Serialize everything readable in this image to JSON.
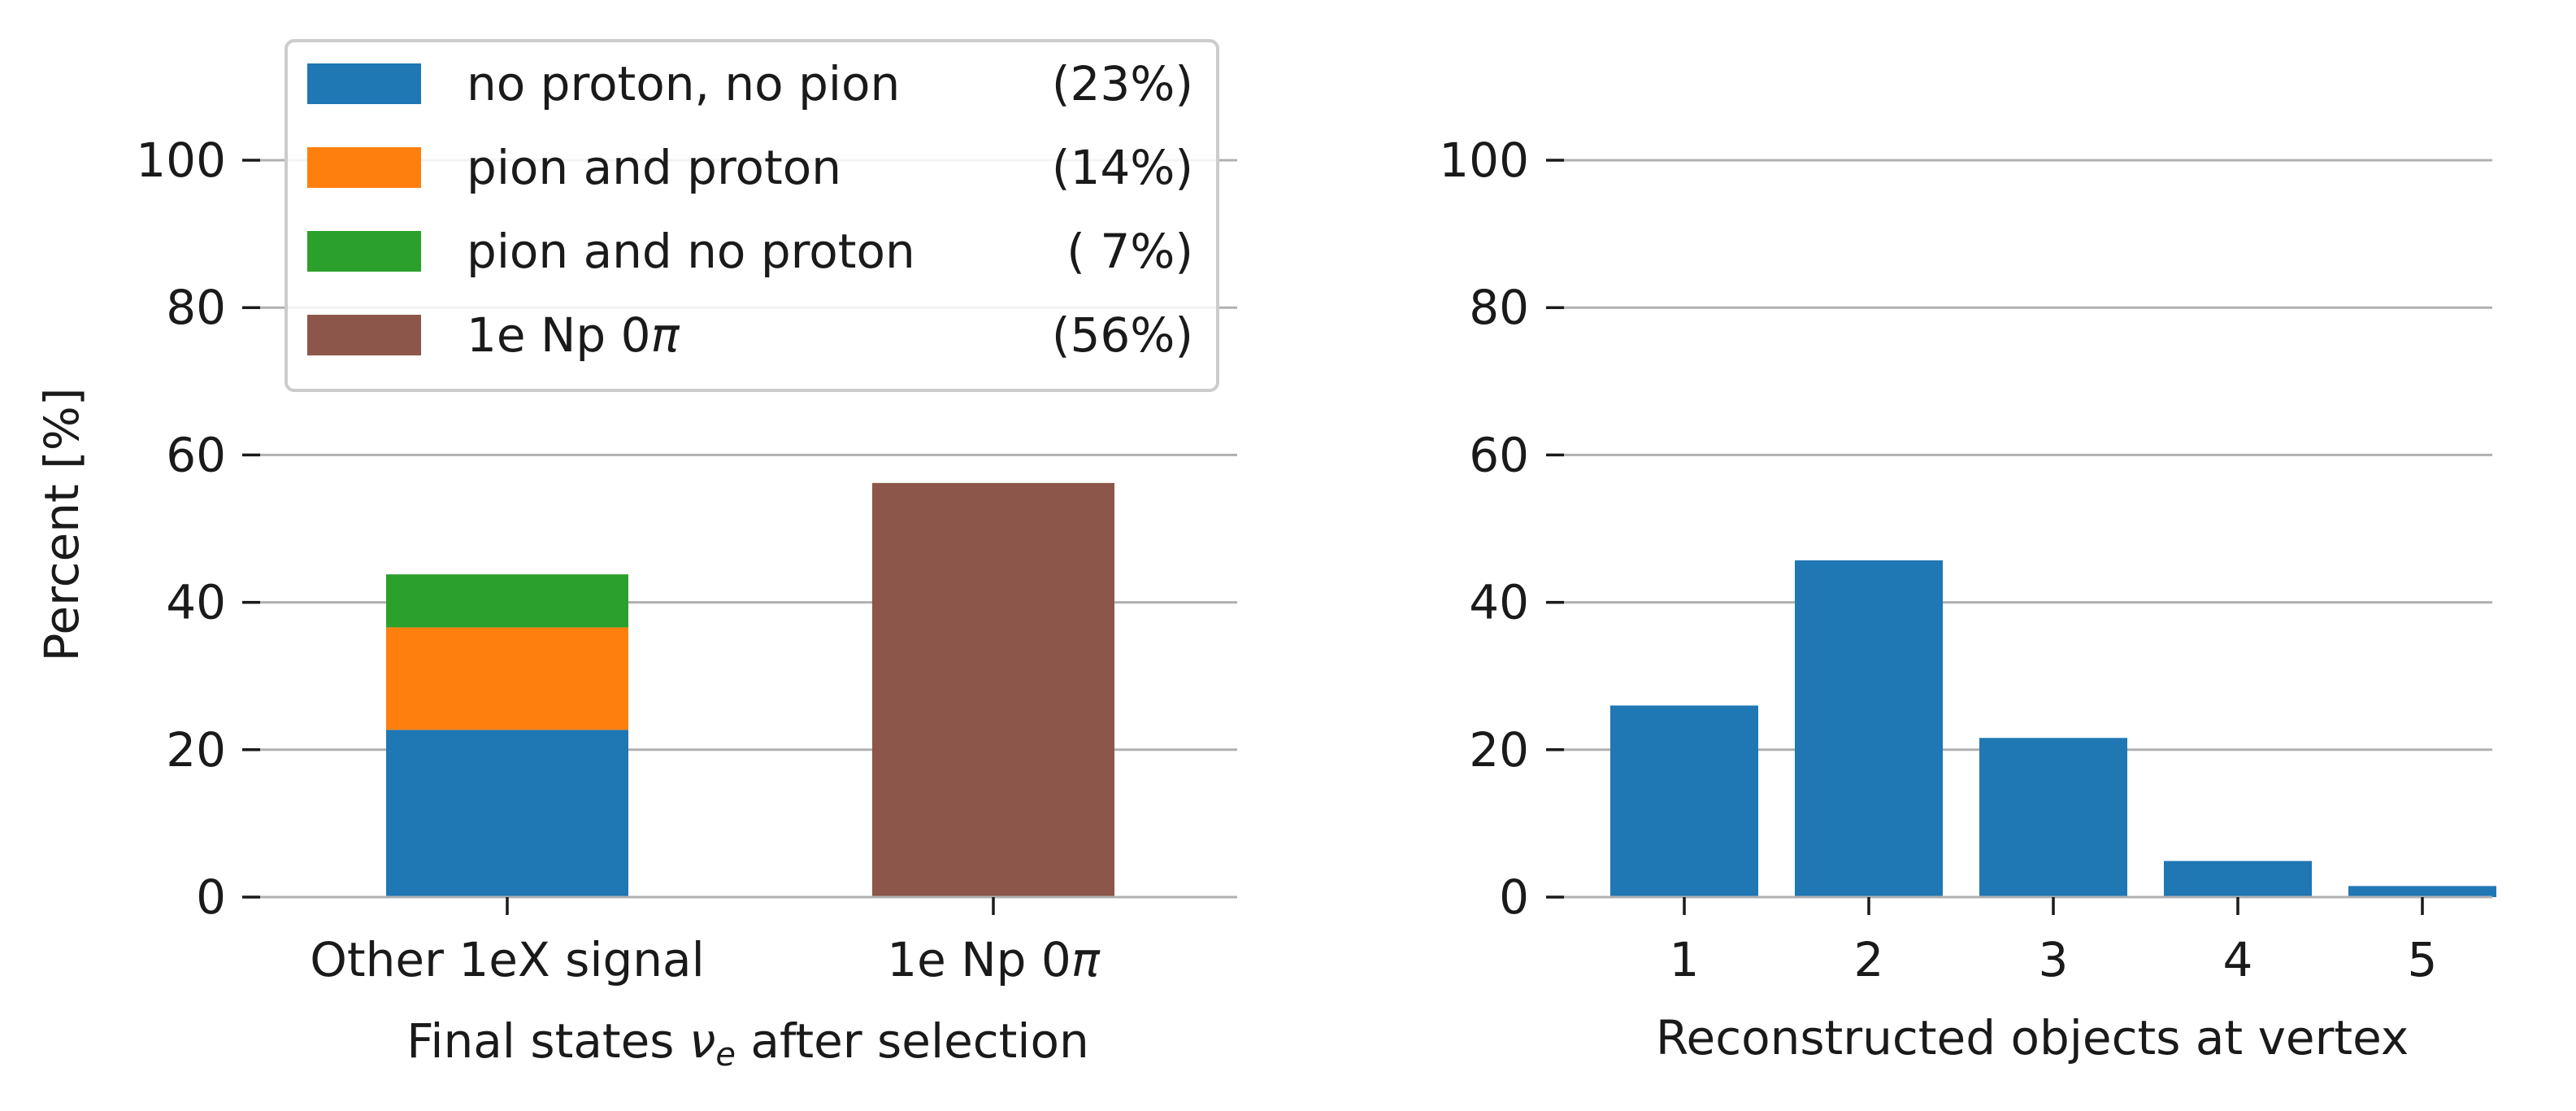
{
  "figure": {
    "colors": {
      "blue": "#1f77b4",
      "orange": "#ff7f0e",
      "green": "#2ca02c",
      "brown": "#8c564b",
      "grid": "#b0b0b0"
    }
  },
  "chart_data": [
    {
      "type": "bar",
      "stacked": true,
      "title": "",
      "xlabel": "Final states νe after selection",
      "ylabel": "Percent [%]",
      "ylim": [
        0,
        115
      ],
      "yticks": [
        "0",
        "20",
        "40",
        "60",
        "80",
        "100"
      ],
      "grid": "horizontal",
      "legend_position": "top-left",
      "categories": [
        "Other 1eX signal",
        "1e Np 0π"
      ],
      "series": [
        {
          "name": "no proton, no pion",
          "legend_pct": "(23%)",
          "color": "#1f77b4",
          "values": [
            22.7,
            0
          ]
        },
        {
          "name": "pion and proton",
          "legend_pct": "(14%)",
          "color": "#ff7f0e",
          "values": [
            13.9,
            0
          ]
        },
        {
          "name": "pion and no proton",
          "legend_pct": "( 7%)",
          "color": "#2ca02c",
          "values": [
            7.2,
            0
          ]
        },
        {
          "name": "1e Np 0π",
          "legend_pct": "(56%)",
          "color": "#8c564b",
          "values": [
            0,
            56.2
          ]
        }
      ]
    },
    {
      "type": "bar",
      "title": "",
      "xlabel": "Reconstructed objects at vertex",
      "ylabel": "",
      "ylim": [
        0,
        115
      ],
      "yticks": [
        "0",
        "20",
        "40",
        "60",
        "80",
        "100"
      ],
      "grid": "horizontal",
      "categories": [
        "1",
        "2",
        "3",
        "4",
        "5"
      ],
      "series": [
        {
          "color": "#1f77b4",
          "values": [
            26.0,
            45.7,
            21.6,
            4.9,
            1.5
          ]
        }
      ]
    }
  ]
}
